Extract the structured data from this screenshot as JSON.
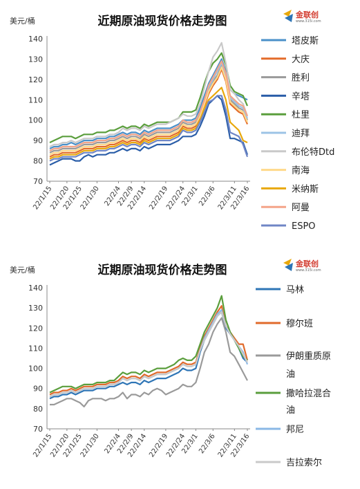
{
  "logo": {
    "text": "金联创",
    "sub": "www.315i.com"
  },
  "chart_data": [
    {
      "type": "line",
      "title": "近期原油现货价格走势图",
      "ylabel": "美元/桶",
      "ylim": [
        70,
        140
      ],
      "yticks": [
        70,
        80,
        90,
        100,
        110,
        120,
        130,
        140
      ],
      "grid": false,
      "legend": "right",
      "x": [
        "22/1/15",
        "22/1/17",
        "22/1/18",
        "22/1/19",
        "22/1/20",
        "22/1/21",
        "22/1/24",
        "22/1/25",
        "22/1/26",
        "22/1/27",
        "22/1/28",
        "22/1/30",
        "22/1/31",
        "22/2/1",
        "22/2/2",
        "22/2/3",
        "22/2/4",
        "22/2/7",
        "22/2/8",
        "22/2/9",
        "22/2/10",
        "22/2/11",
        "22/2/14",
        "22/2/15",
        "22/2/16",
        "22/2/17",
        "22/2/18",
        "22/2/19",
        "22/2/21",
        "22/2/22",
        "22/2/23",
        "22/2/24",
        "22/2/25",
        "22/2/28",
        "22/3/1",
        "22/3/2",
        "22/3/3",
        "22/3/4",
        "22/3/6",
        "22/3/7",
        "22/3/8",
        "22/3/9",
        "22/3/10",
        "22/3/11",
        "22/3/14",
        "22/3/15",
        "22/3/16"
      ],
      "xticks": [
        "22/1/15",
        "22/1/20",
        "22/1/25",
        "22/1/30",
        "22/2/4",
        "22/2/9",
        "22/2/14",
        "22/2/19",
        "22/2/24",
        "22/3/1",
        "22/3/6",
        "22/3/11",
        "22/3/16"
      ],
      "series": [
        {
          "name": "塔皮斯",
          "color": "#4a90c9",
          "values": [
            86,
            87,
            87,
            88,
            88,
            89,
            88,
            89,
            90,
            90,
            90,
            91,
            91,
            91,
            92,
            92,
            93,
            94,
            93,
            94,
            94,
            93,
            95,
            94,
            95,
            96,
            96,
            96,
            96,
            97,
            98,
            100,
            100,
            100,
            101,
            106,
            112,
            118,
            122,
            126,
            130,
            124,
            115,
            113,
            112,
            111,
            110
          ]
        },
        {
          "name": "大庆",
          "color": "#e36c2a",
          "values": [
            82,
            83,
            83,
            84,
            84,
            84,
            84,
            85,
            86,
            86,
            86,
            87,
            87,
            87,
            88,
            88,
            89,
            90,
            89,
            90,
            90,
            89,
            91,
            90,
            91,
            92,
            92,
            92,
            92,
            93,
            94,
            97,
            96,
            96,
            97,
            101,
            107,
            113,
            117,
            120,
            125,
            119,
            108,
            106,
            104,
            103,
            98
          ]
        },
        {
          "name": "胜利",
          "color": "#9a9a9a",
          "values": [
            84,
            85,
            85,
            86,
            86,
            86,
            86,
            87,
            88,
            88,
            88,
            89,
            89,
            89,
            90,
            90,
            91,
            92,
            91,
            92,
            92,
            91,
            93,
            92,
            93,
            94,
            94,
            94,
            94,
            95,
            96,
            99,
            98,
            98,
            99,
            103,
            109,
            115,
            119,
            122,
            127,
            121,
            110,
            108,
            106,
            105,
            100
          ]
        },
        {
          "name": "辛塔",
          "color": "#2b5ea8",
          "values": [
            78,
            79,
            80,
            81,
            81,
            81,
            80,
            80,
            82,
            83,
            82,
            83,
            83,
            83,
            84,
            84,
            85,
            86,
            85,
            86,
            86,
            85,
            87,
            86,
            87,
            88,
            88,
            88,
            88,
            89,
            90,
            92,
            92,
            92,
            93,
            97,
            102,
            108,
            110,
            112,
            110,
            102,
            91,
            91,
            90,
            89,
            83
          ]
        },
        {
          "name": "杜里",
          "color": "#5a9e3c",
          "values": [
            89,
            90,
            91,
            92,
            92,
            92,
            91,
            92,
            93,
            93,
            93,
            94,
            94,
            94,
            95,
            95,
            96,
            97,
            96,
            97,
            97,
            96,
            98,
            97,
            98,
            99,
            99,
            99,
            99,
            100,
            101,
            104,
            104,
            104,
            105,
            111,
            118,
            124,
            128,
            130,
            133,
            127,
            117,
            114,
            113,
            112,
            107
          ]
        },
        {
          "name": "迪拜",
          "color": "#9cc3e6",
          "values": [
            85,
            86,
            86,
            87,
            87,
            87,
            87,
            88,
            89,
            89,
            89,
            90,
            90,
            90,
            91,
            91,
            92,
            93,
            92,
            93,
            93,
            92,
            94,
            93,
            94,
            95,
            95,
            95,
            95,
            96,
            97,
            100,
            99,
            99,
            100,
            104,
            110,
            116,
            120,
            124,
            128,
            122,
            111,
            109,
            107,
            106,
            101
          ]
        },
        {
          "name": "布伦特Dtd",
          "color": "#c9c9c9",
          "values": [
            87,
            88,
            88,
            89,
            89,
            90,
            89,
            90,
            91,
            91,
            91,
            92,
            92,
            92,
            93,
            93,
            94,
            96,
            95,
            96,
            96,
            95,
            97,
            96,
            97,
            98,
            98,
            98,
            99,
            100,
            101,
            103,
            102,
            102,
            103,
            108,
            116,
            124,
            131,
            134,
            138,
            128,
            115,
            113,
            110,
            108,
            102
          ]
        },
        {
          "name": "南海",
          "color": "#ffd98a",
          "values": [
            83,
            84,
            84,
            85,
            85,
            85,
            85,
            86,
            87,
            87,
            87,
            88,
            88,
            88,
            89,
            89,
            90,
            91,
            90,
            91,
            91,
            90,
            92,
            91,
            92,
            93,
            93,
            93,
            93,
            94,
            95,
            98,
            97,
            97,
            98,
            102,
            108,
            114,
            118,
            121,
            126,
            120,
            109,
            107,
            105,
            104,
            99
          ]
        },
        {
          "name": "米纳斯",
          "color": "#e8a80c",
          "values": [
            81,
            82,
            82,
            83,
            83,
            83,
            83,
            84,
            85,
            85,
            85,
            86,
            86,
            86,
            87,
            87,
            88,
            89,
            88,
            89,
            89,
            88,
            90,
            89,
            90,
            91,
            91,
            91,
            91,
            92,
            93,
            96,
            95,
            95,
            96,
            100,
            106,
            110,
            112,
            114,
            116,
            110,
            99,
            97,
            95,
            90,
            89
          ]
        },
        {
          "name": "阿曼",
          "color": "#f4a488",
          "values": [
            85,
            86,
            86,
            87,
            87,
            87,
            87,
            88,
            89,
            89,
            89,
            90,
            90,
            90,
            91,
            91,
            92,
            93,
            92,
            93,
            93,
            92,
            94,
            93,
            94,
            95,
            95,
            95,
            95,
            96,
            97,
            100,
            99,
            99,
            100,
            104,
            110,
            117,
            121,
            125,
            129,
            123,
            112,
            110,
            108,
            107,
            102
          ]
        },
        {
          "name": "ESPO",
          "color": "#6f86c6",
          "values": [
            80,
            81,
            81,
            82,
            82,
            82,
            82,
            83,
            84,
            84,
            84,
            85,
            85,
            85,
            86,
            86,
            87,
            88,
            87,
            88,
            88,
            87,
            89,
            88,
            89,
            90,
            90,
            90,
            90,
            91,
            92,
            95,
            94,
            94,
            95,
            99,
            104,
            109,
            110,
            112,
            112,
            105,
            94,
            93,
            92,
            88,
            82
          ]
        }
      ]
    },
    {
      "type": "line",
      "title": "近期原油现货价格走势图",
      "ylabel": "美元/桶",
      "ylim": [
        70,
        140
      ],
      "yticks": [
        70,
        80,
        90,
        100,
        110,
        120,
        130,
        140
      ],
      "grid": false,
      "legend": "right",
      "x": [
        "22/1/15",
        "22/1/17",
        "22/1/18",
        "22/1/19",
        "22/1/20",
        "22/1/21",
        "22/1/24",
        "22/1/25",
        "22/1/26",
        "22/1/27",
        "22/1/28",
        "22/1/30",
        "22/1/31",
        "22/2/1",
        "22/2/2",
        "22/2/3",
        "22/2/4",
        "22/2/7",
        "22/2/8",
        "22/2/9",
        "22/2/10",
        "22/2/11",
        "22/2/14",
        "22/2/15",
        "22/2/16",
        "22/2/17",
        "22/2/18",
        "22/2/19",
        "22/2/21",
        "22/2/22",
        "22/2/23",
        "22/2/24",
        "22/2/25",
        "22/2/28",
        "22/3/1",
        "22/3/2",
        "22/3/3",
        "22/3/4",
        "22/3/6",
        "22/3/7",
        "22/3/8",
        "22/3/9",
        "22/3/10",
        "22/3/11",
        "22/3/14",
        "22/3/15",
        "22/3/16"
      ],
      "xticks": [
        "22/1/15",
        "22/1/20",
        "22/1/25",
        "22/1/30",
        "22/2/4",
        "22/2/9",
        "22/2/14",
        "22/2/19",
        "22/2/24",
        "22/3/1",
        "22/3/6",
        "22/3/11",
        "22/3/16"
      ],
      "series": [
        {
          "name": "马林",
          "color": "#2e75b6",
          "values": [
            85,
            86,
            86,
            87,
            87,
            88,
            87,
            88,
            89,
            89,
            89,
            90,
            90,
            90,
            91,
            91,
            92,
            93,
            92,
            93,
            93,
            92,
            94,
            93,
            94,
            95,
            95,
            95,
            96,
            97,
            98,
            100,
            99,
            99,
            100,
            108,
            114,
            118,
            122,
            126,
            128,
            120,
            117,
            114,
            110,
            105,
            103
          ]
        },
        {
          "name": "穆尔班",
          "color": "#e06a2b",
          "values": [
            87,
            88,
            88,
            89,
            89,
            90,
            89,
            90,
            91,
            91,
            91,
            92,
            92,
            92,
            93,
            93,
            94,
            96,
            95,
            96,
            96,
            95,
            97,
            96,
            97,
            98,
            98,
            98,
            99,
            100,
            101,
            103,
            102,
            102,
            103,
            110,
            116,
            120,
            124,
            128,
            131,
            121,
            118,
            115,
            112,
            112,
            104
          ]
        },
        {
          "name": "伊朗重质原油",
          "color": "#9a9a9a",
          "values": [
            82,
            82,
            83,
            84,
            85,
            85,
            84,
            83,
            81,
            84,
            85,
            85,
            85,
            84,
            85,
            85,
            86,
            88,
            85,
            87,
            87,
            86,
            88,
            87,
            89,
            90,
            89,
            87,
            88,
            89,
            90,
            92,
            91,
            91,
            93,
            100,
            108,
            112,
            118,
            122,
            125,
            118,
            108,
            106,
            102,
            98,
            94
          ]
        },
        {
          "name": "撒哈拉混合油",
          "color": "#5a9e3c",
          "values": [
            88,
            89,
            90,
            91,
            91,
            91,
            90,
            91,
            92,
            92,
            92,
            93,
            93,
            93,
            94,
            94,
            96,
            98,
            97,
            98,
            98,
            97,
            99,
            98,
            99,
            100,
            100,
            100,
            101,
            102,
            104,
            105,
            104,
            104,
            106,
            112,
            118,
            122,
            126,
            130,
            136,
            124,
            118,
            114,
            110,
            106,
            104
          ]
        },
        {
          "name": "邦尼",
          "color": "#8ab8e6",
          "values": [
            86,
            87,
            87,
            88,
            88,
            89,
            88,
            89,
            90,
            90,
            90,
            91,
            91,
            91,
            92,
            92,
            93,
            95,
            94,
            95,
            95,
            94,
            96,
            95,
            96,
            97,
            97,
            97,
            98,
            99,
            100,
            102,
            101,
            101,
            102,
            109,
            115,
            119,
            123,
            127,
            129,
            121,
            117,
            114,
            111,
            108,
            102
          ]
        },
        {
          "name": "吉拉索尔",
          "color": "#c9c9c9",
          "values": [
            86,
            87,
            87,
            88,
            88,
            89,
            88,
            89,
            90,
            90,
            90,
            91,
            91,
            91,
            92,
            92,
            93,
            95,
            94,
            95,
            95,
            94,
            96,
            95,
            96,
            97,
            97,
            97,
            98,
            99,
            100,
            102,
            101,
            101,
            102,
            109,
            114,
            118,
            122,
            126,
            128,
            121,
            117,
            114,
            111,
            107,
            103
          ]
        }
      ]
    }
  ]
}
